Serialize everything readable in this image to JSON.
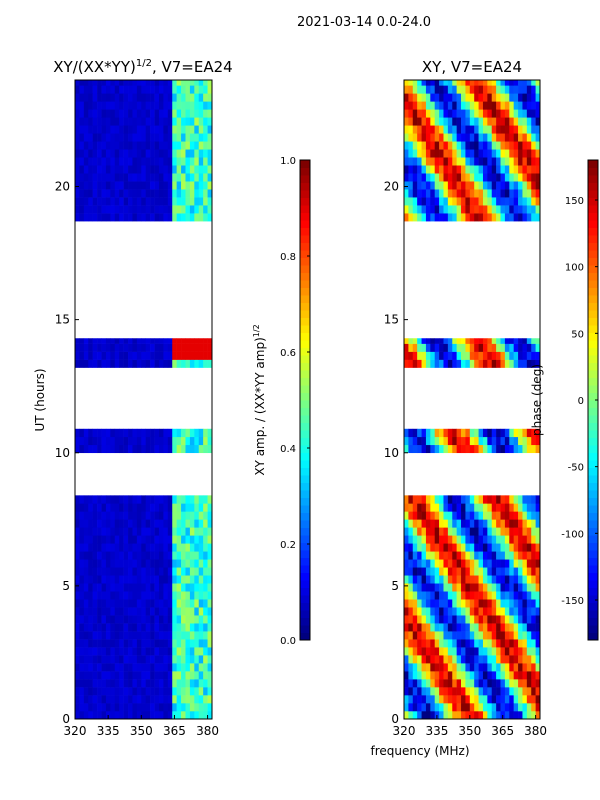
{
  "figure": {
    "suptitle": "2021-03-14 0.0-24.0",
    "xlabel_shared": "frequency (MHz)"
  },
  "colors": {
    "jet": [
      "#00007f",
      "#0000ff",
      "#007fff",
      "#00ffff",
      "#7fff7f",
      "#ffff00",
      "#ff7f00",
      "#ff0000",
      "#7f0000"
    ],
    "background": "#ffffff",
    "axis": "#000000"
  },
  "chart_data": [
    {
      "type": "heatmap",
      "title": "XY/(XX*YY)",
      "title_exponent": "1/2",
      "title_suffix": ", V7=EA24",
      "xlabel": "",
      "ylabel": "UT (hours)",
      "xlim": [
        320,
        382
      ],
      "ylim": [
        0,
        24
      ],
      "x_ticks": [
        320,
        335,
        350,
        365,
        380
      ],
      "y_ticks": [
        0,
        5,
        10,
        15,
        20
      ],
      "value_range": [
        0.0,
        1.0
      ],
      "data_blocks_ut": [
        [
          0.0,
          8.4
        ],
        [
          10.0,
          10.9
        ],
        [
          13.2,
          14.3
        ],
        [
          18.7,
          24.0
        ]
      ],
      "flagged_gaps_ut": [
        [
          8.4,
          10.0
        ],
        [
          10.9,
          13.2
        ],
        [
          14.3,
          18.7
        ]
      ],
      "dominant_value": 0.05,
      "rfi_band_mhz": [
        363,
        380
      ],
      "rfi_band_value_range": [
        0.3,
        0.55
      ],
      "saturated_band_ut": [
        13.4,
        14.3
      ],
      "saturated_band_value": 0.9,
      "colorbar": {
        "label": "XY amp. / (XX*YY amp)",
        "label_exponent": "1/2",
        "range": [
          0.0,
          1.0
        ],
        "ticks": [
          "0.0",
          "0.2",
          "0.4",
          "0.6",
          "0.8",
          "1.0"
        ]
      }
    },
    {
      "type": "heatmap",
      "title": "XY, V7=EA24",
      "xlabel": "",
      "ylabel": "",
      "xlim": [
        320,
        382
      ],
      "ylim": [
        0,
        24
      ],
      "x_ticks": [
        320,
        335,
        350,
        365,
        380
      ],
      "y_ticks": [
        0,
        5,
        10,
        15,
        20
      ],
      "value_range": [
        -180,
        180
      ],
      "data_blocks_ut": [
        [
          0.0,
          8.4
        ],
        [
          10.0,
          10.9
        ],
        [
          13.2,
          14.3
        ],
        [
          18.7,
          24.0
        ]
      ],
      "flagged_gaps_ut": [
        [
          8.4,
          10.0
        ],
        [
          10.9,
          13.2
        ],
        [
          14.3,
          18.7
        ]
      ],
      "colorbar": {
        "label": "phase (deg)",
        "range": [
          -180,
          180
        ],
        "ticks": [
          "-150",
          "-100",
          "-50",
          "0",
          "50",
          "100",
          "150"
        ]
      }
    }
  ]
}
